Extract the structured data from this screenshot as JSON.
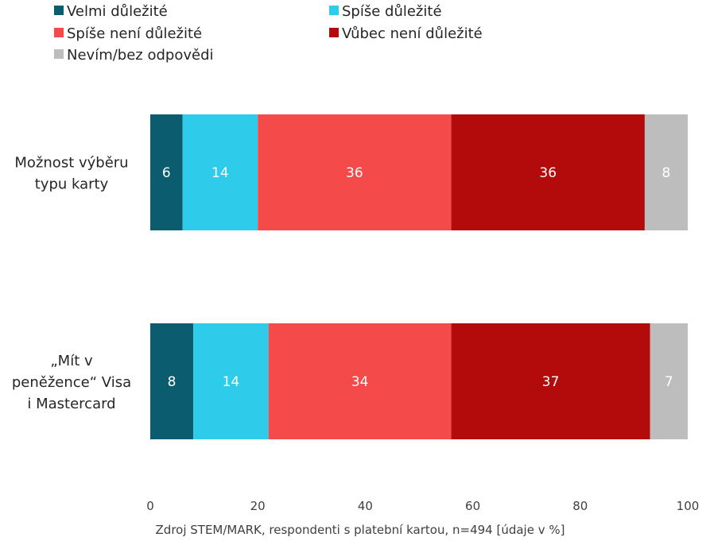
{
  "chart_data": {
    "type": "bar",
    "orientation": "horizontal",
    "stacked": true,
    "categories": [
      "Možnost výběru typu karty",
      "„Mít v peněžence“ Visa i Mastercard"
    ],
    "category_lines": [
      [
        "Možnost výběru",
        "typu karty"
      ],
      [
        "„Mít v",
        "peněžence“ Visa",
        "i Mastercard"
      ]
    ],
    "series": [
      {
        "name": "Velmi důležité",
        "color": "#0b5c6e",
        "values": [
          6,
          8
        ],
        "labels": [
          "6",
          "8"
        ]
      },
      {
        "name": "Spíše důležité",
        "color": "#2ecbea",
        "values": [
          14,
          14
        ],
        "labels": [
          "14",
          "14"
        ]
      },
      {
        "name": "Spíše není důležité",
        "color": "#f54a4a",
        "values": [
          36,
          34
        ],
        "labels": [
          "36",
          "34"
        ]
      },
      {
        "name": "Vůbec není důležité",
        "color": "#b30b0b",
        "values": [
          36,
          37
        ],
        "labels": [
          "36",
          "37"
        ]
      },
      {
        "name": "Nevím/bez odpovědi",
        "color": "#bdbdbd",
        "values": [
          8,
          7
        ],
        "labels": [
          "8",
          "7"
        ]
      }
    ],
    "xlim": [
      0,
      100
    ],
    "x_ticks": [
      0,
      20,
      40,
      60,
      80,
      100
    ],
    "x_tick_labels": [
      "0",
      "20",
      "40",
      "60",
      "80",
      "100"
    ],
    "legend_position": "top-left",
    "grid": false,
    "footnote": "Zdroj STEM/MARK, respondenti s platební kartou, n=494 [údaje v %]"
  }
}
